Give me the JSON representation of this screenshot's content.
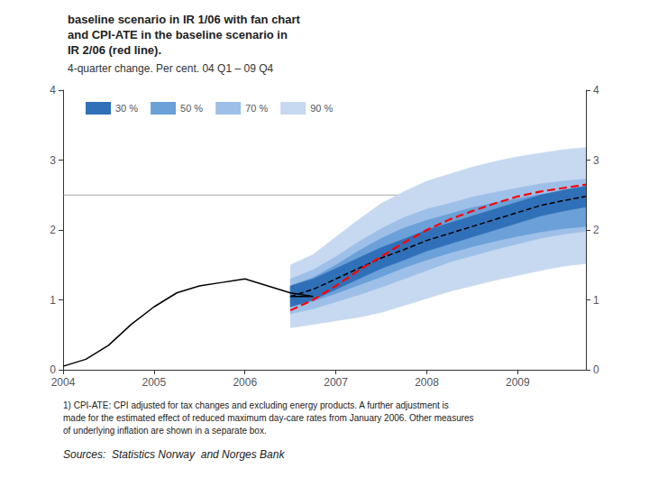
{
  "chart_data": {
    "type": "line",
    "title": "baseline scenario in IR 1/06 with fan chart\nand CPI-ATE in the baseline scenario in\nIR 2/06 (red line).",
    "subtitle": "4-quarter change. Per cent. 04 Q1 – 09 Q4",
    "footnote": "1) CPI-ATE: CPI adjusted for tax changes and excluding energy products. A further adjustment is\nmade for the estimated effect of reduced maximum day-care rates from January 2006. Other measures\nof underlying inflation are shown in a separate box.",
    "source": "Sources:  Statistics Norway  and Norges Bank",
    "xlim": [
      2004.0,
      2009.75
    ],
    "xticks": [
      2004,
      2005,
      2006,
      2007,
      2008,
      2009
    ],
    "ylim": [
      0,
      4
    ],
    "yticks": [
      0,
      1,
      2,
      3,
      4
    ],
    "y2lim": [
      0,
      4
    ],
    "y2ticks": [
      0,
      1,
      2,
      3,
      4
    ],
    "grid": false,
    "legend": "upper left",
    "target_line": {
      "y": 2.5,
      "color": "gray"
    },
    "series": [
      {
        "name": "30 %",
        "type": "band",
        "color": "#3070b8",
        "x": [
          2006.5,
          2006.75,
          2007.0,
          2007.25,
          2007.5,
          2007.75,
          2008.0,
          2008.25,
          2008.5,
          2008.75,
          2009.0,
          2009.25,
          2009.5,
          2009.75
        ],
        "lower": [
          0.9,
          1.0,
          1.15,
          1.3,
          1.45,
          1.57,
          1.7,
          1.8,
          1.9,
          2.0,
          2.1,
          2.2,
          2.27,
          2.33
        ],
        "upper": [
          1.2,
          1.3,
          1.45,
          1.6,
          1.75,
          1.87,
          2.0,
          2.1,
          2.2,
          2.3,
          2.4,
          2.5,
          2.57,
          2.63
        ]
      },
      {
        "name": "50 %",
        "type": "band",
        "color": "#6ba0d8",
        "x": [
          2006.5,
          2006.75,
          2007.0,
          2007.25,
          2007.5,
          2007.75,
          2008.0,
          2008.25,
          2008.5,
          2008.75,
          2009.0,
          2009.25,
          2009.5,
          2009.75
        ],
        "lower": [
          0.9,
          0.98,
          1.09,
          1.21,
          1.33,
          1.46,
          1.57,
          1.67,
          1.76,
          1.84,
          1.91,
          1.97,
          2.02,
          2.05
        ],
        "upper": [
          1.2,
          1.32,
          1.5,
          1.7,
          1.88,
          2.03,
          2.14,
          2.23,
          2.32,
          2.39,
          2.45,
          2.51,
          2.55,
          2.58
        ]
      },
      {
        "name": "70 %",
        "type": "band",
        "color": "#9ec0e8",
        "x": [
          2006.5,
          2006.75,
          2007.0,
          2007.25,
          2007.5,
          2007.75,
          2008.0,
          2008.25,
          2008.5,
          2008.75,
          2009.0,
          2009.25,
          2009.5,
          2009.75
        ],
        "lower": [
          0.8,
          0.87,
          0.97,
          1.07,
          1.18,
          1.3,
          1.42,
          1.54,
          1.63,
          1.72,
          1.8,
          1.88,
          1.94,
          1.98
        ],
        "upper": [
          1.3,
          1.43,
          1.62,
          1.83,
          2.02,
          2.18,
          2.3,
          2.38,
          2.47,
          2.54,
          2.6,
          2.66,
          2.7,
          2.73
        ]
      },
      {
        "name": "90 %",
        "type": "band",
        "color": "#c6d9f0",
        "x": [
          2006.5,
          2006.75,
          2007.0,
          2007.25,
          2007.5,
          2007.75,
          2008.0,
          2008.25,
          2008.5,
          2008.75,
          2009.0,
          2009.25,
          2009.5,
          2009.75
        ],
        "lower": [
          0.6,
          0.65,
          0.7,
          0.75,
          0.82,
          0.92,
          1.02,
          1.12,
          1.2,
          1.28,
          1.35,
          1.42,
          1.48,
          1.52
        ],
        "upper": [
          1.5,
          1.65,
          1.9,
          2.15,
          2.38,
          2.55,
          2.7,
          2.8,
          2.9,
          2.98,
          3.05,
          3.1,
          3.15,
          3.18
        ]
      },
      {
        "type": "line",
        "color": "black",
        "line_style": "dashed",
        "x": [
          2006.5,
          2006.75,
          2007.0,
          2007.25,
          2007.5,
          2007.75,
          2008.0,
          2008.25,
          2008.5,
          2008.75,
          2009.0,
          2009.25,
          2009.5,
          2009.75
        ],
        "values": [
          1.05,
          1.15,
          1.3,
          1.45,
          1.6,
          1.72,
          1.85,
          1.95,
          2.05,
          2.15,
          2.25,
          2.35,
          2.42,
          2.48
        ]
      },
      {
        "type": "line",
        "color": "red",
        "line_style": "dashed",
        "x": [
          2006.5,
          2006.75,
          2007.0,
          2007.25,
          2007.5,
          2007.75,
          2008.0,
          2008.25,
          2008.5,
          2008.75,
          2009.0,
          2009.25,
          2009.5,
          2009.75
        ],
        "values": [
          0.85,
          1.0,
          1.2,
          1.42,
          1.62,
          1.82,
          2.0,
          2.15,
          2.27,
          2.38,
          2.48,
          2.55,
          2.6,
          2.65
        ]
      },
      {
        "type": "line",
        "color": "black",
        "line_style": "solid",
        "x": [
          2004.0,
          2004.25,
          2004.5,
          2004.75,
          2005.0,
          2005.25,
          2005.5,
          2005.75,
          2006.0,
          2006.25,
          2006.5,
          2006.75,
          2006.5
        ],
        "values": [
          0.05,
          0.15,
          0.35,
          0.65,
          0.9,
          1.1,
          1.2,
          1.25,
          1.3,
          1.2,
          1.1,
          1.05,
          1.05
        ]
      }
    ]
  }
}
